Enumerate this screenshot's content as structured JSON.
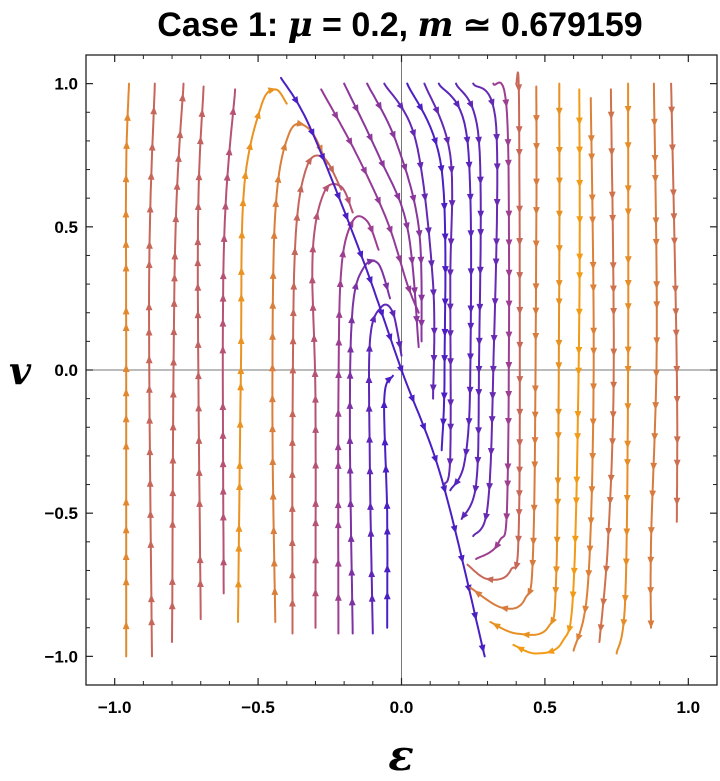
{
  "chart_data": {
    "type": "streamplot",
    "title": {
      "prefix": "Case 1: ",
      "mu_symbol": "μ",
      "mu_value": " = 0.2, ",
      "m_symbol": "m",
      "m_value": " ≃ 0.679159"
    },
    "xlabel": "ε",
    "ylabel": "v",
    "xlim": [
      -1.1,
      1.1
    ],
    "ylim": [
      -1.1,
      1.1
    ],
    "x_ticks": [
      -1.0,
      -0.5,
      0.0,
      0.5,
      1.0
    ],
    "y_ticks": [
      -1.0,
      -0.5,
      0.0,
      0.5,
      1.0
    ],
    "x_tick_labels": [
      "−1.0",
      "−0.5",
      "0.0",
      "0.5",
      "1.0"
    ],
    "y_tick_labels": [
      "−1.0",
      "−0.5",
      "0.0",
      "0.5",
      "1.0"
    ],
    "axes_through_origin": true,
    "parameters": {
      "mu": 0.2,
      "m": 0.679159
    },
    "color_scale": {
      "low_speed": "#4a1fc4",
      "mid_speed": "#a8428a",
      "high_speed": "#f5a00f"
    },
    "streamlines": [
      {
        "points": [
          [
            -0.96,
            -1.0
          ],
          [
            -0.96,
            0.15
          ],
          [
            -0.96,
            0.7
          ],
          [
            -0.95,
            1.0
          ]
        ]
      },
      {
        "points": [
          [
            -0.87,
            -1.0
          ],
          [
            -0.88,
            0.3
          ],
          [
            -0.86,
            1.0
          ]
        ]
      },
      {
        "points": [
          [
            -0.8,
            -0.95
          ],
          [
            -0.79,
            0.4
          ],
          [
            -0.76,
            1.0
          ]
        ]
      },
      {
        "points": [
          [
            -0.7,
            -0.87
          ],
          [
            -0.71,
            0.45
          ],
          [
            -0.69,
            0.99
          ]
        ]
      },
      {
        "points": [
          [
            -0.62,
            -0.78
          ],
          [
            -0.62,
            0.4
          ],
          [
            -0.58,
            0.98
          ]
        ]
      },
      {
        "points": [
          [
            -0.57,
            -0.88
          ],
          [
            -0.56,
            0.0
          ],
          [
            -0.55,
            0.62
          ],
          [
            -0.49,
            0.92
          ],
          [
            -0.44,
            0.98
          ],
          [
            -0.4,
            0.93
          ]
        ]
      },
      {
        "points": [
          [
            -0.44,
            -0.88
          ],
          [
            -0.45,
            -0.15
          ],
          [
            -0.44,
            0.55
          ],
          [
            -0.39,
            0.83
          ],
          [
            -0.32,
            0.84
          ],
          [
            -0.26,
            0.72
          ]
        ]
      },
      {
        "points": [
          [
            -0.38,
            -0.92
          ],
          [
            -0.38,
            -0.2
          ],
          [
            -0.37,
            0.45
          ],
          [
            -0.33,
            0.71
          ],
          [
            -0.27,
            0.74
          ],
          [
            -0.21,
            0.63
          ]
        ]
      },
      {
        "points": [
          [
            -0.3,
            -0.9
          ],
          [
            -0.3,
            -0.1
          ],
          [
            -0.31,
            0.4
          ],
          [
            -0.27,
            0.62
          ],
          [
            -0.21,
            0.64
          ],
          [
            -0.17,
            0.55
          ]
        ]
      },
      {
        "points": [
          [
            -0.22,
            -0.92
          ],
          [
            -0.22,
            -0.1
          ],
          [
            -0.21,
            0.35
          ],
          [
            -0.17,
            0.52
          ],
          [
            -0.12,
            0.52
          ],
          [
            -0.08,
            0.42
          ]
        ]
      },
      {
        "points": [
          [
            -0.17,
            -0.92
          ],
          [
            -0.18,
            -0.2
          ],
          [
            -0.17,
            0.22
          ],
          [
            -0.13,
            0.36
          ],
          [
            -0.08,
            0.37
          ],
          [
            -0.04,
            0.25
          ]
        ]
      },
      {
        "points": [
          [
            -0.1,
            -0.92
          ],
          [
            -0.11,
            -0.35
          ],
          [
            -0.11,
            0.1
          ],
          [
            -0.07,
            0.22
          ],
          [
            -0.03,
            0.2
          ],
          [
            0.0,
            0.05
          ]
        ]
      },
      {
        "points": [
          [
            -0.05,
            -0.9
          ],
          [
            -0.05,
            -0.5
          ],
          [
            -0.06,
            -0.1
          ],
          [
            -0.03,
            -0.02
          ]
        ]
      },
      {
        "points": [
          [
            -0.42,
            1.02
          ],
          [
            -0.32,
            0.85
          ],
          [
            -0.14,
            0.4
          ],
          [
            0.0,
            0.0
          ],
          [
            0.14,
            -0.38
          ],
          [
            0.29,
            -1.0
          ]
        ]
      },
      {
        "points": [
          [
            -0.28,
            0.98
          ],
          [
            -0.16,
            0.76
          ],
          [
            -0.05,
            0.52
          ],
          [
            0.02,
            0.3
          ],
          [
            0.06,
            0.2
          ]
        ]
      },
      {
        "points": [
          [
            -0.2,
            1.0
          ],
          [
            -0.08,
            0.75
          ],
          [
            0.02,
            0.5
          ],
          [
            0.06,
            0.08
          ]
        ]
      },
      {
        "points": [
          [
            -0.12,
            1.0
          ],
          [
            -0.02,
            0.8
          ],
          [
            0.06,
            0.5
          ],
          [
            0.07,
            0.1
          ]
        ]
      },
      {
        "points": [
          [
            -0.06,
            1.0
          ],
          [
            0.05,
            0.8
          ],
          [
            0.11,
            0.3
          ],
          [
            0.11,
            -0.1
          ]
        ]
      },
      {
        "points": [
          [
            0.02,
            1.0
          ],
          [
            0.14,
            0.7
          ],
          [
            0.15,
            0.0
          ],
          [
            0.14,
            -0.28
          ]
        ]
      },
      {
        "points": [
          [
            0.08,
            1.0
          ],
          [
            0.17,
            0.75
          ],
          [
            0.17,
            0.3
          ],
          [
            0.17,
            -0.3
          ],
          [
            0.15,
            -0.4
          ]
        ]
      },
      {
        "points": [
          [
            0.13,
            1.0
          ],
          [
            0.23,
            0.8
          ],
          [
            0.24,
            0.0
          ],
          [
            0.22,
            -0.32
          ],
          [
            0.17,
            -0.42
          ]
        ]
      },
      {
        "points": [
          [
            0.19,
            1.0
          ],
          [
            0.27,
            0.8
          ],
          [
            0.27,
            0.0
          ],
          [
            0.26,
            -0.4
          ],
          [
            0.21,
            -0.52
          ]
        ]
      },
      {
        "points": [
          [
            0.25,
            1.0
          ],
          [
            0.33,
            0.85
          ],
          [
            0.32,
            0.0
          ],
          [
            0.3,
            -0.48
          ],
          [
            0.25,
            -0.58
          ]
        ]
      },
      {
        "points": [
          [
            0.32,
            1.0
          ],
          [
            0.37,
            0.85
          ],
          [
            0.37,
            -0.4
          ],
          [
            0.34,
            -0.6
          ],
          [
            0.26,
            -0.66
          ]
        ]
      },
      {
        "points": [
          [
            0.4,
            1.0
          ],
          [
            0.41,
            0.9
          ],
          [
            0.41,
            -0.5
          ],
          [
            0.38,
            -0.7
          ],
          [
            0.3,
            -0.73
          ],
          [
            0.23,
            -0.68
          ]
        ]
      },
      {
        "points": [
          [
            0.47,
            0.99
          ],
          [
            0.47,
            0.5
          ],
          [
            0.46,
            -0.6
          ],
          [
            0.43,
            -0.8
          ],
          [
            0.35,
            -0.83
          ],
          [
            0.24,
            -0.76
          ]
        ]
      },
      {
        "points": [
          [
            0.55,
            1.0
          ],
          [
            0.55,
            0.3
          ],
          [
            0.54,
            -0.7
          ],
          [
            0.51,
            -0.9
          ],
          [
            0.4,
            -0.92
          ],
          [
            0.31,
            -0.88
          ]
        ]
      },
      {
        "points": [
          [
            0.62,
            0.98
          ],
          [
            0.62,
            0.2
          ],
          [
            0.6,
            -0.75
          ],
          [
            0.56,
            -0.95
          ],
          [
            0.47,
            -0.99
          ],
          [
            0.39,
            -0.96
          ]
        ]
      },
      {
        "points": [
          [
            0.66,
            0.95
          ],
          [
            0.67,
            0.0
          ],
          [
            0.65,
            -0.75
          ],
          [
            0.6,
            -0.98
          ]
        ]
      },
      {
        "points": [
          [
            0.73,
            0.98
          ],
          [
            0.74,
            0.0
          ],
          [
            0.72,
            -0.6
          ],
          [
            0.69,
            -0.95
          ]
        ]
      },
      {
        "points": [
          [
            0.79,
            1.0
          ],
          [
            0.79,
            0.0
          ],
          [
            0.78,
            -0.8
          ],
          [
            0.75,
            -0.99
          ]
        ]
      },
      {
        "points": [
          [
            0.88,
            1.0
          ],
          [
            0.89,
            0.1
          ],
          [
            0.87,
            -0.6
          ],
          [
            0.87,
            -0.9
          ]
        ]
      },
      {
        "points": [
          [
            0.94,
            1.0
          ],
          [
            0.96,
            0.0
          ],
          [
            0.96,
            -0.53
          ]
        ]
      }
    ]
  }
}
